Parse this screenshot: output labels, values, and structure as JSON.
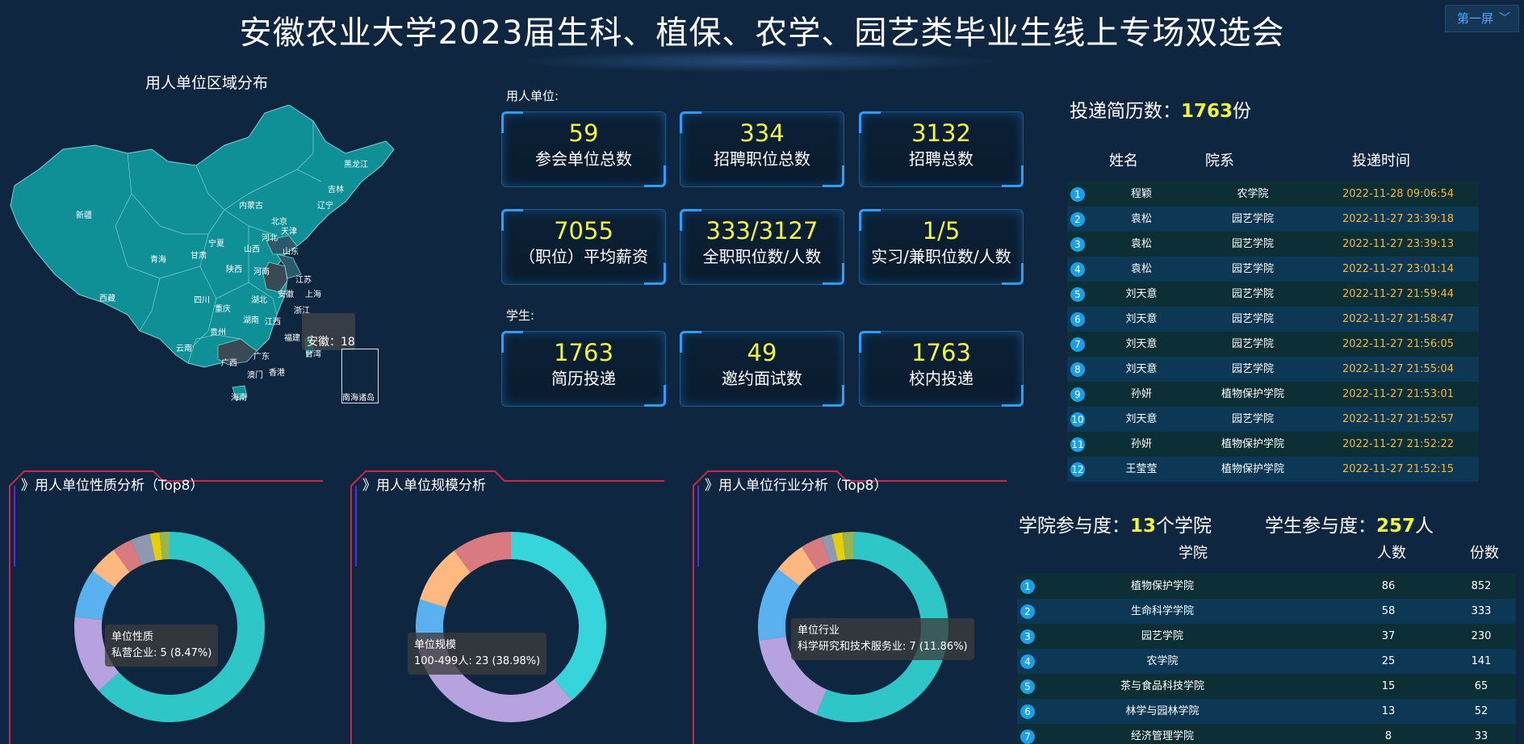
{
  "header": {
    "title": "安徽农业大学2023届生科、植保、农学、园艺类毕业生线上专场双选会",
    "screen_selector": "第一屏"
  },
  "map": {
    "title": "用人单位区域分布",
    "tooltip": "安徽：18",
    "nanhai_label": "南海诸岛",
    "provinces": [
      "黑龙江",
      "吉林",
      "辽宁",
      "内蒙古",
      "北京",
      "天津",
      "河北",
      "山西",
      "山东",
      "新疆",
      "甘肃",
      "宁夏",
      "青海",
      "陕西",
      "河南",
      "江苏",
      "安徽",
      "上海",
      "西藏",
      "四川",
      "湖北",
      "浙江",
      "重庆",
      "湖南",
      "江西",
      "贵州",
      "福建",
      "云南",
      "广西",
      "广东",
      "台湾",
      "澳门",
      "香港",
      "海南"
    ],
    "colors": {
      "base": "#0f8f96",
      "highlight": "#3a4a55",
      "border": "#7fd0d0"
    }
  },
  "employer": {
    "label": "用人单位:",
    "stats": [
      {
        "value": "59",
        "label": "参会单位总数"
      },
      {
        "value": "334",
        "label": "招聘职位总数"
      },
      {
        "value": "3132",
        "label": "招聘总数"
      },
      {
        "value": "7055",
        "label": "（职位）平均薪资"
      },
      {
        "value": "333/3127",
        "label": "全职职位数/人数"
      },
      {
        "value": "1/5",
        "label": "实习/兼职位数/人数"
      }
    ]
  },
  "student": {
    "label": "学生:",
    "stats": [
      {
        "value": "1763",
        "label": "简历投递"
      },
      {
        "value": "49",
        "label": "邀约面试数"
      },
      {
        "value": "1763",
        "label": "校内投递"
      }
    ]
  },
  "resumes": {
    "title_prefix": "投递简历数：",
    "count": "1763",
    "unit": "份",
    "headers": {
      "name": "姓名",
      "dept": "院系",
      "time": "投递时间"
    },
    "rows": [
      {
        "no": "1",
        "name": "程颖",
        "dept": "农学院",
        "time": "2022-11-28 09:06:54"
      },
      {
        "no": "2",
        "name": "袁松",
        "dept": "园艺学院",
        "time": "2022-11-27 23:39:18"
      },
      {
        "no": "3",
        "name": "袁松",
        "dept": "园艺学院",
        "time": "2022-11-27 23:39:13"
      },
      {
        "no": "4",
        "name": "袁松",
        "dept": "园艺学院",
        "time": "2022-11-27 23:01:14"
      },
      {
        "no": "5",
        "name": "刘天意",
        "dept": "园艺学院",
        "time": "2022-11-27 21:59:44"
      },
      {
        "no": "6",
        "name": "刘天意",
        "dept": "园艺学院",
        "time": "2022-11-27 21:58:47"
      },
      {
        "no": "7",
        "name": "刘天意",
        "dept": "园艺学院",
        "time": "2022-11-27 21:56:05"
      },
      {
        "no": "8",
        "name": "刘天意",
        "dept": "园艺学院",
        "time": "2022-11-27 21:55:04"
      },
      {
        "no": "9",
        "name": "孙妍",
        "dept": "植物保护学院",
        "time": "2022-11-27 21:53:01"
      },
      {
        "no": "10",
        "name": "刘天意",
        "dept": "园艺学院",
        "time": "2022-11-27 21:52:57"
      },
      {
        "no": "11",
        "name": "孙妍",
        "dept": "植物保护学院",
        "time": "2022-11-27 21:52:22"
      },
      {
        "no": "12",
        "name": "王莹莹",
        "dept": "植物保护学院",
        "time": "2022-11-27 21:52:15"
      }
    ]
  },
  "participation": {
    "college_prefix": "学院参与度：",
    "college_count": "13",
    "college_unit": "个学院",
    "student_prefix": "学生参与度：",
    "student_count": "257",
    "student_unit": "人",
    "headers": {
      "college": "学院",
      "people": "人数",
      "count": "份数"
    },
    "rows": [
      {
        "no": "1",
        "college": "植物保护学院",
        "people": "86",
        "count": "852"
      },
      {
        "no": "2",
        "college": "生命科学学院",
        "people": "58",
        "count": "333"
      },
      {
        "no": "3",
        "college": "园艺学院",
        "people": "37",
        "count": "230"
      },
      {
        "no": "4",
        "college": "农学院",
        "people": "25",
        "count": "141"
      },
      {
        "no": "5",
        "college": "茶与食品科技学院",
        "people": "15",
        "count": "65"
      },
      {
        "no": "6",
        "college": "林学与园林学院",
        "people": "13",
        "count": "52"
      },
      {
        "no": "7",
        "college": "经济管理学院",
        "people": "8",
        "count": "33"
      }
    ]
  },
  "chart_data": [
    {
      "type": "pie",
      "title": "》用人单位性质分析（Top8）",
      "tooltip_title": "单位性质",
      "tooltip_text": "私营企业: 5 (8.47%)",
      "values": [
        38,
        8,
        5,
        3,
        2,
        2,
        1,
        1
      ],
      "colors": [
        "#2fc6c8",
        "#b6a2de",
        "#5ab1ef",
        "#ffb980",
        "#d87a80",
        "#8d98b3",
        "#e5cf0d",
        "#97b552"
      ]
    },
    {
      "type": "pie",
      "title": "》用人单位规模分析",
      "tooltip_title": "单位规模",
      "tooltip_text": "100-499人: 23 (38.98%)",
      "values": [
        23,
        20,
        4,
        6,
        6
      ],
      "colors": [
        "#36d5dc",
        "#b6a2de",
        "#5ab1ef",
        "#ffb980",
        "#d87a80"
      ]
    },
    {
      "type": "pie",
      "title": "》用人单位行业分析（Top8）",
      "tooltip_title": "单位行业",
      "tooltip_text": "科学研究和技术服务业: 7 (11.86%)",
      "values": [
        31,
        9,
        7,
        3,
        2,
        1,
        1,
        1
      ],
      "colors": [
        "#2fc6c8",
        "#b6a2de",
        "#5ab1ef",
        "#ffb980",
        "#d87a80",
        "#8d98b3",
        "#e5cf0d",
        "#97b552"
      ]
    }
  ]
}
